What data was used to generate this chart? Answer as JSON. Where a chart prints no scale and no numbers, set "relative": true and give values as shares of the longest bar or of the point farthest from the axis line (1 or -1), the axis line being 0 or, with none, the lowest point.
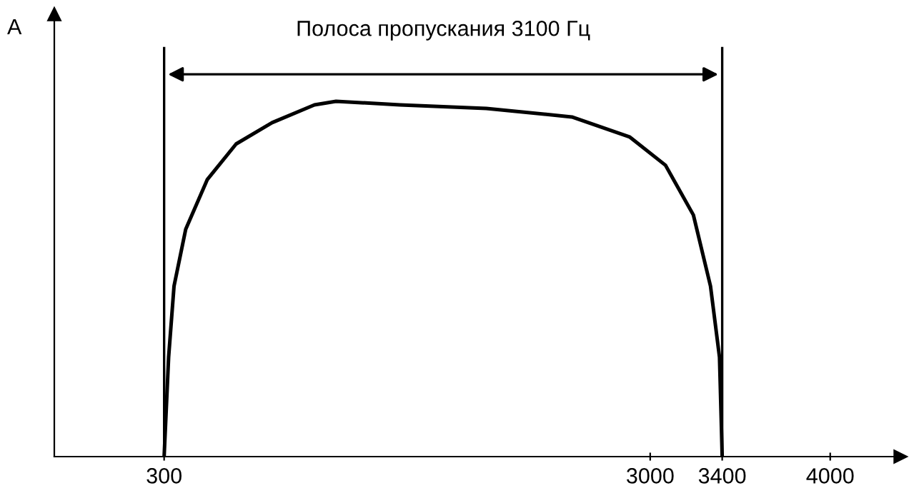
{
  "chart_data": {
    "type": "line",
    "relative": true,
    "ylabel": "A",
    "x": [
      300,
      325,
      355,
      420,
      540,
      700,
      900,
      1135,
      1255,
      1610,
      2090,
      2565,
      2885,
      3085,
      3240,
      3335,
      3385,
      3400
    ],
    "series": [
      {
        "color": "#000000",
        "values": [
          0,
          0.28,
          0.48,
          0.64,
          0.78,
          0.88,
          0.94,
          0.99,
          1.0,
          0.99,
          0.98,
          0.956,
          0.9,
          0.82,
          0.68,
          0.48,
          0.28,
          0
        ]
      }
    ],
    "xlim": [
      -310,
      4390
    ],
    "xticks": [
      300,
      3000,
      3400,
      4000
    ],
    "ref_lines": [
      {
        "axis": "x",
        "value": 300,
        "color": "#000000"
      },
      {
        "axis": "x",
        "value": 3400,
        "color": "#000000"
      }
    ],
    "annotations": [
      "Полоса пропускания 3100 Гц"
    ],
    "grid": false,
    "legend": false,
    "marker": "none",
    "line_style": "solid"
  }
}
